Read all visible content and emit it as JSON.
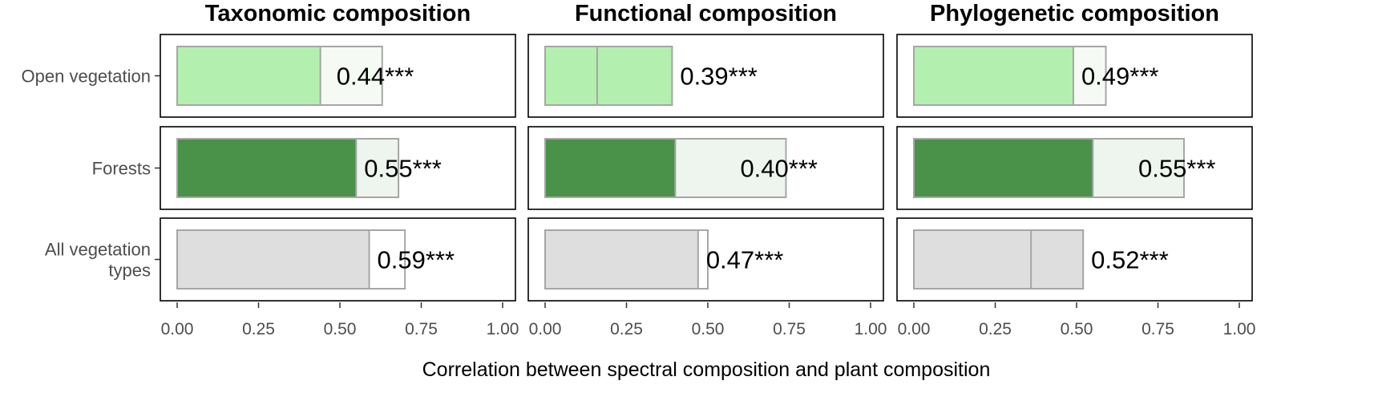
{
  "chart_data": {
    "type": "bar",
    "xlabel": "Correlation between spectral composition and plant composition",
    "xlim": [
      0,
      1
    ],
    "x_ticks": [
      "0.00",
      "0.25",
      "0.50",
      "0.75",
      "1.00"
    ],
    "facets": [
      {
        "title": "Taxonomic composition"
      },
      {
        "title": "Functional composition"
      },
      {
        "title": "Phylogenetic composition"
      }
    ],
    "categories": [
      "Open vegetation",
      "Forests",
      "All vegetation types"
    ],
    "category_lines": [
      [
        "Open vegetation"
      ],
      [
        "Forests"
      ],
      [
        "All vegetation",
        "types"
      ]
    ],
    "colors": {
      "Open vegetation": {
        "fill": "#b3f0b0",
        "light": "#f5fbf4"
      },
      "Forests": {
        "fill": "#4a914a",
        "light": "#eef5ee"
      },
      "All vegetation types": {
        "fill": "#dedede",
        "light": "#ffffff"
      },
      "outline": "#a6a6a6",
      "panel_border": "#000000"
    },
    "panels": [
      {
        "facet": 0,
        "category": "Open vegetation",
        "value": 0.44,
        "total": 0.63,
        "label": "0.44***"
      },
      {
        "facet": 0,
        "category": "Forests",
        "value": 0.55,
        "total": 0.68,
        "label": "0.55***"
      },
      {
        "facet": 0,
        "category": "All vegetation types",
        "value": 0.59,
        "total": 0.7,
        "label": "0.59***"
      },
      {
        "facet": 1,
        "category": "Open vegetation",
        "value": 0.39,
        "total": 0.39,
        "inner_line": 0.16,
        "label": "0.39***"
      },
      {
        "facet": 1,
        "category": "Forests",
        "value": 0.4,
        "total": 0.74,
        "label": "0.40***"
      },
      {
        "facet": 1,
        "category": "All vegetation types",
        "value": 0.47,
        "total": 0.5,
        "label": "0.47***"
      },
      {
        "facet": 2,
        "category": "Open vegetation",
        "value": 0.49,
        "total": 0.59,
        "label": "0.49***"
      },
      {
        "facet": 2,
        "category": "Forests",
        "value": 0.55,
        "total": 0.83,
        "label": "0.55***"
      },
      {
        "facet": 2,
        "category": "All vegetation types",
        "value": 0.52,
        "total": 0.52,
        "inner_line": 0.36,
        "label": "0.52***"
      }
    ]
  }
}
